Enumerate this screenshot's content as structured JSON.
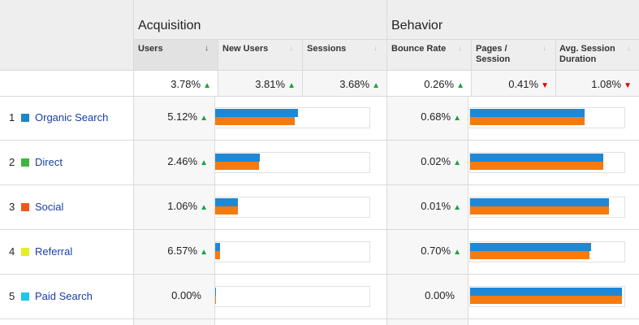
{
  "colors": {
    "users_bar": "#1e88d6",
    "new_users_bar": "#f57a10",
    "up_arrow": "#1aa33a",
    "down_arrow": "#e00000"
  },
  "groups": {
    "acquisition": "Acquisition",
    "behavior": "Behavior"
  },
  "columns": {
    "users": "Users",
    "new_users": "New Users",
    "sessions": "Sessions",
    "bounce_rate": "Bounce Rate",
    "pages_session": "Pages /\nSession",
    "avg_session": "Avg. Session\nDuration"
  },
  "totals": {
    "users": "3.78%",
    "new_users": "3.81%",
    "sessions": "3.68%",
    "bounce_rate": "0.26%",
    "pages_session": "0.41%",
    "avg_session": "1.08%"
  },
  "rows": [
    {
      "index": "1",
      "label": "Organic Search",
      "swatch": "#1b87c9",
      "users": "5.12%",
      "bounce_rate": "0.68%",
      "acq_users": 0.545,
      "acq_new": 0.52,
      "beh_a": 0.75,
      "beh_b": 0.75
    },
    {
      "index": "2",
      "label": "Direct",
      "swatch": "#3cb63c",
      "users": "2.46%",
      "bounce_rate": "0.02%",
      "acq_users": 0.29,
      "acq_new": 0.285,
      "beh_a": 0.87,
      "beh_b": 0.87
    },
    {
      "index": "3",
      "label": "Social",
      "swatch": "#f2561d",
      "users": "1.06%",
      "bounce_rate": "0.01%",
      "acq_users": 0.15,
      "acq_new": 0.15,
      "beh_a": 0.91,
      "beh_b": 0.91
    },
    {
      "index": "4",
      "label": "Referral",
      "swatch": "#e5ee24",
      "users": "6.57%",
      "bounce_rate": "0.70%",
      "acq_users": 0.03,
      "acq_new": 0.03,
      "beh_a": 0.79,
      "beh_b": 0.78
    },
    {
      "index": "5",
      "label": "Paid Search",
      "swatch": "#1ec6e6",
      "users": "0.00%",
      "bounce_rate": "0.00%",
      "acq_users": 0.005,
      "acq_new": 0.005,
      "beh_a": 0.995,
      "beh_b": 0.995
    }
  ]
}
